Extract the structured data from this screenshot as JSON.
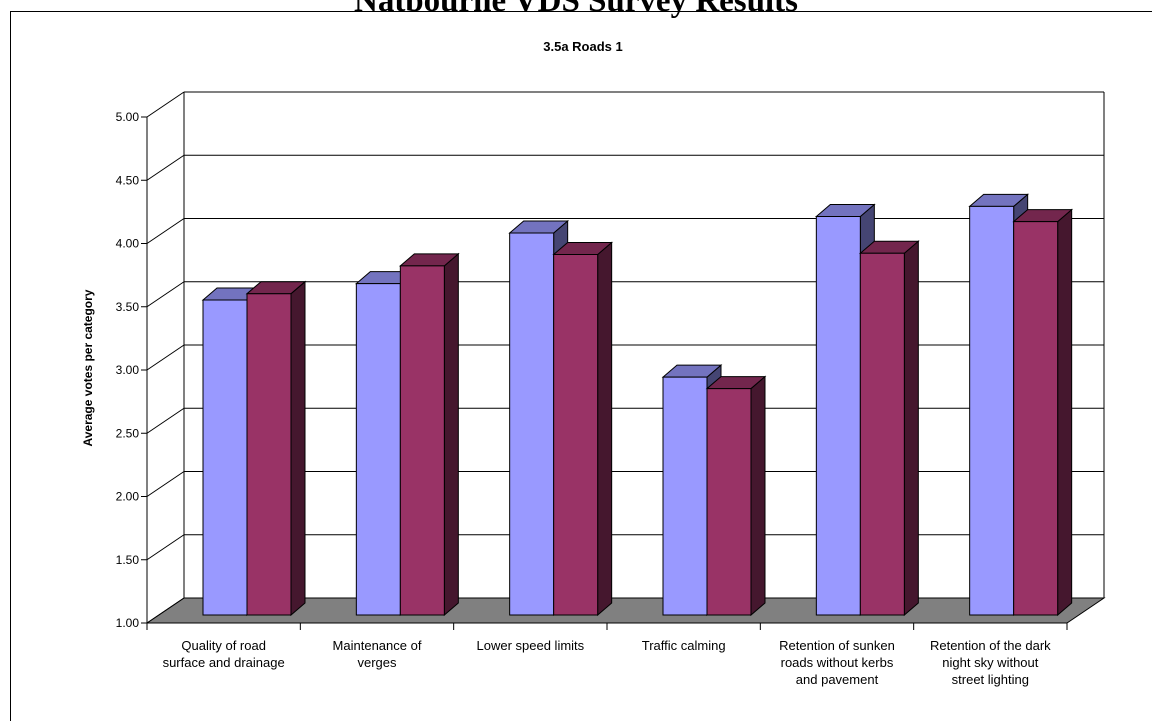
{
  "page_heading": "Natbourne VDS Survey Results",
  "chart_data": {
    "type": "bar",
    "title": "3.5a Roads 1",
    "xlabel": "",
    "ylabel": "Average votes per category",
    "ylim": [
      1.0,
      5.0
    ],
    "yticks": [
      "1.00",
      "1.50",
      "2.00",
      "2.50",
      "3.00",
      "3.50",
      "4.00",
      "4.50",
      "5.00"
    ],
    "grid": true,
    "legend": "none",
    "style": "3d",
    "categories": [
      [
        "Quality of road",
        "surface and drainage"
      ],
      [
        "Maintenance of",
        "verges"
      ],
      [
        "Lower speed limits"
      ],
      [
        "Traffic calming"
      ],
      [
        "Retention of sunken",
        "roads without kerbs",
        "and pavement"
      ],
      [
        "Retention of the dark",
        "night sky without",
        "street lighting"
      ]
    ],
    "series": [
      {
        "values": [
          3.49,
          3.62,
          4.02,
          2.88,
          4.15,
          4.23
        ],
        "color": "#9999ff"
      },
      {
        "values": [
          3.54,
          3.76,
          3.85,
          2.79,
          3.86,
          4.11
        ],
        "color": "#993366"
      }
    ],
    "colors": {
      "floor": "#808080",
      "grid": "#000000"
    }
  }
}
